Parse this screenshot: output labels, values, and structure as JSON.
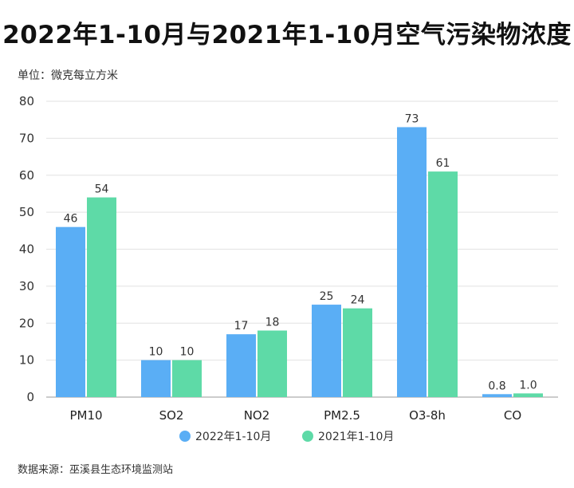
{
  "chart_data": {
    "type": "bar",
    "title": "2022年1-10月与2021年1-10月空气污染物浓度",
    "unit_label": "单位：微克每立方米",
    "source": "数据来源：巫溪县生态环境监测站",
    "categories": [
      "PM10",
      "SO2",
      "NO2",
      "PM2.5",
      "O3-8h",
      "CO"
    ],
    "series": [
      {
        "name": "2022年1-10月",
        "color": "#5aaef5",
        "values": [
          46,
          10,
          17,
          25,
          73,
          0.8
        ],
        "labels": [
          "46",
          "10",
          "17",
          "25",
          "73",
          "0.8"
        ]
      },
      {
        "name": "2021年1-10月",
        "color": "#5edaa7",
        "values": [
          54,
          10,
          18,
          24,
          61,
          1.0
        ],
        "labels": [
          "54",
          "10",
          "18",
          "24",
          "61",
          "1.0"
        ]
      }
    ],
    "ylim": [
      0,
      80
    ],
    "yticks": [
      0,
      10,
      20,
      30,
      40,
      50,
      60,
      70,
      80
    ],
    "grid": true,
    "legend_position": "bottom-center"
  }
}
